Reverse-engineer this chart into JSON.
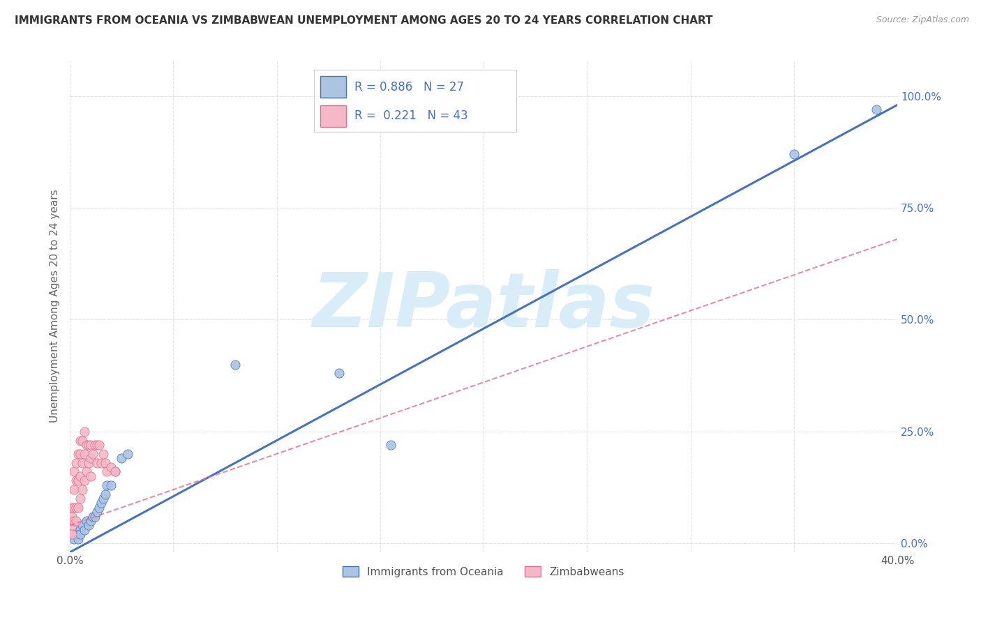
{
  "title": "IMMIGRANTS FROM OCEANIA VS ZIMBABWEAN UNEMPLOYMENT AMONG AGES 20 TO 24 YEARS CORRELATION CHART",
  "source": "Source: ZipAtlas.com",
  "ylabel": "Unemployment Among Ages 20 to 24 years",
  "xlim": [
    0.0,
    0.4
  ],
  "ylim": [
    -0.02,
    1.08
  ],
  "yticks": [
    0.0,
    0.25,
    0.5,
    0.75,
    1.0
  ],
  "ytick_labels": [
    "0.0%",
    "25.0%",
    "50.0%",
    "75.0%",
    "100.0%"
  ],
  "xticks": [
    0.0,
    0.05,
    0.1,
    0.15,
    0.2,
    0.25,
    0.3,
    0.35,
    0.4
  ],
  "xtick_labels": [
    "0.0%",
    "",
    "",
    "",
    "",
    "",
    "",
    "",
    "40.0%"
  ],
  "blue_scatter_x": [
    0.002,
    0.003,
    0.004,
    0.005,
    0.005,
    0.006,
    0.007,
    0.008,
    0.009,
    0.01,
    0.011,
    0.012,
    0.013,
    0.014,
    0.015,
    0.016,
    0.017,
    0.018,
    0.02,
    0.022,
    0.025,
    0.028,
    0.08,
    0.13,
    0.155,
    0.35,
    0.39
  ],
  "blue_scatter_y": [
    0.01,
    0.02,
    0.01,
    0.03,
    0.02,
    0.04,
    0.03,
    0.05,
    0.04,
    0.05,
    0.06,
    0.06,
    0.07,
    0.08,
    0.09,
    0.1,
    0.11,
    0.13,
    0.13,
    0.16,
    0.19,
    0.2,
    0.4,
    0.38,
    0.22,
    0.87,
    0.97
  ],
  "pink_scatter_x": [
    0.001,
    0.001,
    0.001,
    0.001,
    0.002,
    0.002,
    0.002,
    0.002,
    0.003,
    0.003,
    0.003,
    0.003,
    0.004,
    0.004,
    0.004,
    0.005,
    0.005,
    0.005,
    0.005,
    0.006,
    0.006,
    0.006,
    0.007,
    0.007,
    0.007,
    0.008,
    0.008,
    0.009,
    0.009,
    0.01,
    0.01,
    0.01,
    0.011,
    0.012,
    0.013,
    0.013,
    0.014,
    0.015,
    0.016,
    0.017,
    0.018,
    0.02,
    0.022
  ],
  "pink_scatter_y": [
    0.02,
    0.04,
    0.06,
    0.08,
    0.05,
    0.08,
    0.12,
    0.16,
    0.05,
    0.08,
    0.14,
    0.18,
    0.08,
    0.14,
    0.2,
    0.1,
    0.15,
    0.2,
    0.23,
    0.12,
    0.18,
    0.23,
    0.14,
    0.2,
    0.25,
    0.16,
    0.22,
    0.18,
    0.22,
    0.15,
    0.19,
    0.22,
    0.2,
    0.22,
    0.18,
    0.22,
    0.22,
    0.18,
    0.2,
    0.18,
    0.16,
    0.17,
    0.16
  ],
  "blue_color": "#aac4e2",
  "blue_line_color": "#4472c4",
  "pink_color": "#f4b8c8",
  "pink_line_color": "#e07090",
  "R_blue": 0.886,
  "N_blue": 27,
  "R_pink": 0.221,
  "N_pink": 43,
  "blue_trend_slope": 2.5,
  "blue_trend_intercept": -0.02,
  "pink_trend_slope": 1.6,
  "pink_trend_intercept": 0.04,
  "legend_blue_label": "Immigrants from Oceania",
  "legend_pink_label": "Zimbabweans",
  "watermark": "ZIPatlas",
  "watermark_color": "#d8edf8",
  "grid_color": "#e0e0e0",
  "background_color": "#ffffff",
  "title_fontsize": 11,
  "axis_label_fontsize": 11,
  "tick_fontsize": 11
}
